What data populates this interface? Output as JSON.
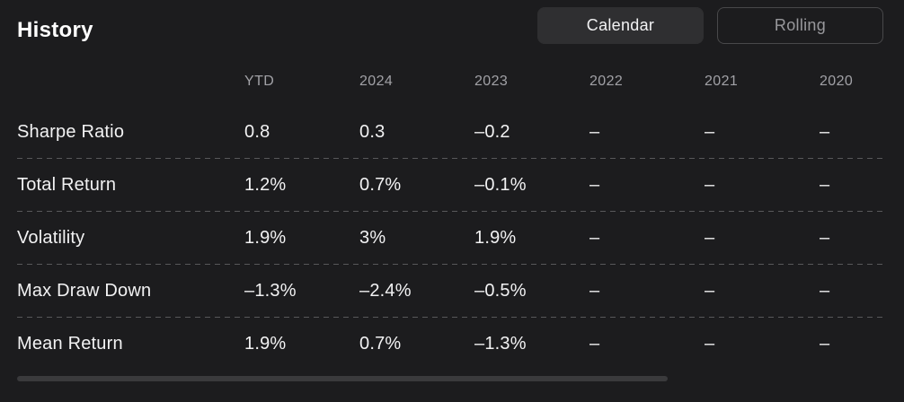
{
  "page": {
    "title": "History"
  },
  "toggle": {
    "calendar_label": "Calendar",
    "rolling_label": "Rolling",
    "active": "Calendar"
  },
  "table": {
    "columns": [
      "YTD",
      "2024",
      "2023",
      "2022",
      "2021",
      "2020"
    ],
    "rows": [
      {
        "label": "Sharpe Ratio",
        "values": [
          "0.8",
          "0.3",
          "–0.2",
          "–",
          "–",
          "–"
        ]
      },
      {
        "label": "Total Return",
        "values": [
          "1.2%",
          "0.7%",
          "–0.1%",
          "–",
          "–",
          "–"
        ]
      },
      {
        "label": "Volatility",
        "values": [
          "1.9%",
          "3%",
          "1.9%",
          "–",
          "–",
          "–"
        ]
      },
      {
        "label": "Max Draw Down",
        "values": [
          "–1.3%",
          "–2.4%",
          "–0.5%",
          "–",
          "–",
          "–"
        ]
      },
      {
        "label": "Mean Return",
        "values": [
          "1.9%",
          "0.7%",
          "–1.3%",
          "–",
          "–",
          "–"
        ]
      }
    ]
  },
  "colors": {
    "background": "#1c1c1e",
    "active_button_bg": "#2f2f31",
    "inactive_button_border": "#48484a",
    "text_primary": "#f2f2f3",
    "text_muted": "#a1a1a6",
    "separator": "#58585a",
    "scrollbar": "#3a3a3c"
  }
}
